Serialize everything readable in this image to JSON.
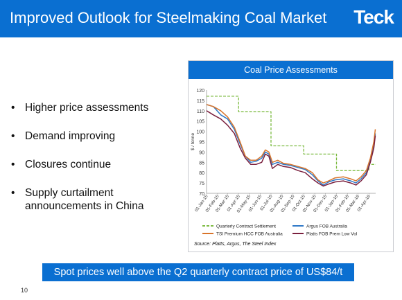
{
  "header": {
    "title": "Improved Outlook for Steelmaking Coal Market",
    "logo": "Teck"
  },
  "bullets": [
    "Higher price assessments",
    "Demand improving",
    "Closures continue",
    "Supply curtailment announcements in China"
  ],
  "banner": "Spot prices well above the Q2 quarterly contract price of US$84/t",
  "page_number": "10",
  "colors": {
    "brand_blue": "#0a6fd1"
  },
  "chart_data": {
    "type": "line",
    "title": "Coal Price Assessments",
    "ylabel": "$ / tonne",
    "xlabel": "",
    "ylim": [
      70,
      120
    ],
    "yticks": [
      70,
      75,
      80,
      85,
      90,
      95,
      100,
      105,
      110,
      115,
      120
    ],
    "xlim": [
      "2015-01-01",
      "2016-04-20"
    ],
    "xtick_labels": [
      "01-Jan-15",
      "01-Feb-15",
      "01-Mar-15",
      "01-Apr-15",
      "01-May-15",
      "01-Jun-15",
      "01-Jul-15",
      "01-Aug-15",
      "01-Sep-15",
      "01-Oct-15",
      "01-Nov-15",
      "01-Dec-15",
      "01-Jan-16",
      "01-Feb-16",
      "01-Mar-16",
      "01-Apr-16"
    ],
    "xtick_dates": [
      "2015-01-01",
      "2015-02-01",
      "2015-03-01",
      "2015-04-01",
      "2015-05-01",
      "2015-06-01",
      "2015-07-01",
      "2015-08-01",
      "2015-09-01",
      "2015-10-01",
      "2015-11-01",
      "2015-12-01",
      "2016-01-01",
      "2016-02-01",
      "2016-03-01",
      "2016-04-01"
    ],
    "source": "Source: Platts, Argus, The Steel Index",
    "legend_position": "bottom",
    "series": [
      {
        "name": "Quarterly Contract Settlement",
        "color": "#7dbb42",
        "dashed": true,
        "step": true,
        "points": [
          [
            "2015-01-01",
            117
          ],
          [
            "2015-04-01",
            117
          ],
          [
            "2015-04-01",
            109.5
          ],
          [
            "2015-07-01",
            109.5
          ],
          [
            "2015-07-01",
            93
          ],
          [
            "2015-10-01",
            93
          ],
          [
            "2015-10-01",
            89
          ],
          [
            "2016-01-01",
            89
          ],
          [
            "2016-01-01",
            81
          ],
          [
            "2016-04-01",
            81
          ],
          [
            "2016-04-01",
            84
          ],
          [
            "2016-04-20",
            84
          ]
        ]
      },
      {
        "name": "Argus FOB Australia",
        "color": "#2e78c7",
        "dashed": false,
        "step": false,
        "points": [
          [
            "2015-01-01",
            113
          ],
          [
            "2015-01-20",
            112
          ],
          [
            "2015-02-10",
            108
          ],
          [
            "2015-03-01",
            106
          ],
          [
            "2015-03-20",
            101
          ],
          [
            "2015-04-05",
            94
          ],
          [
            "2015-04-20",
            88
          ],
          [
            "2015-05-05",
            85
          ],
          [
            "2015-05-20",
            85.5
          ],
          [
            "2015-06-05",
            87
          ],
          [
            "2015-06-15",
            90
          ],
          [
            "2015-06-25",
            89
          ],
          [
            "2015-07-05",
            84
          ],
          [
            "2015-07-20",
            85
          ],
          [
            "2015-08-05",
            84
          ],
          [
            "2015-08-25",
            83.5
          ],
          [
            "2015-09-15",
            82.5
          ],
          [
            "2015-10-05",
            81.5
          ],
          [
            "2015-10-25",
            79
          ],
          [
            "2015-11-10",
            76
          ],
          [
            "2015-11-25",
            74
          ],
          [
            "2015-12-10",
            75.5
          ],
          [
            "2015-12-28",
            76.5
          ],
          [
            "2016-01-20",
            77
          ],
          [
            "2016-02-10",
            76
          ],
          [
            "2016-02-25",
            75
          ],
          [
            "2016-03-10",
            77
          ],
          [
            "2016-03-25",
            80
          ],
          [
            "2016-04-05",
            86
          ],
          [
            "2016-04-15",
            93
          ],
          [
            "2016-04-19",
            99
          ]
        ]
      },
      {
        "name": "TSI Premium HCC FOB Australia",
        "color": "#d9742a",
        "dashed": false,
        "step": false,
        "points": [
          [
            "2015-01-01",
            113
          ],
          [
            "2015-01-20",
            112
          ],
          [
            "2015-02-10",
            110
          ],
          [
            "2015-03-01",
            107
          ],
          [
            "2015-03-20",
            102
          ],
          [
            "2015-04-05",
            95
          ],
          [
            "2015-04-20",
            88
          ],
          [
            "2015-05-05",
            86
          ],
          [
            "2015-05-20",
            86
          ],
          [
            "2015-06-05",
            88
          ],
          [
            "2015-06-15",
            91
          ],
          [
            "2015-06-25",
            90
          ],
          [
            "2015-07-05",
            85
          ],
          [
            "2015-07-20",
            86
          ],
          [
            "2015-08-05",
            84.5
          ],
          [
            "2015-08-25",
            84
          ],
          [
            "2015-09-15",
            83
          ],
          [
            "2015-10-05",
            82
          ],
          [
            "2015-10-25",
            80
          ],
          [
            "2015-11-10",
            76.5
          ],
          [
            "2015-11-25",
            75
          ],
          [
            "2015-12-10",
            76
          ],
          [
            "2015-12-28",
            77.5
          ],
          [
            "2016-01-20",
            78
          ],
          [
            "2016-02-10",
            77
          ],
          [
            "2016-02-25",
            76
          ],
          [
            "2016-03-10",
            78
          ],
          [
            "2016-03-25",
            81
          ],
          [
            "2016-04-05",
            87
          ],
          [
            "2016-04-15",
            95
          ],
          [
            "2016-04-19",
            101
          ]
        ]
      },
      {
        "name": "Platts FOB Prem Low Vol",
        "color": "#7a1f3d",
        "dashed": false,
        "step": false,
        "points": [
          [
            "2015-01-01",
            110
          ],
          [
            "2015-01-20",
            108
          ],
          [
            "2015-02-10",
            106
          ],
          [
            "2015-03-01",
            103
          ],
          [
            "2015-03-20",
            99
          ],
          [
            "2015-04-05",
            92
          ],
          [
            "2015-04-20",
            87
          ],
          [
            "2015-05-05",
            84
          ],
          [
            "2015-05-20",
            84
          ],
          [
            "2015-06-05",
            85
          ],
          [
            "2015-06-15",
            89
          ],
          [
            "2015-06-25",
            88
          ],
          [
            "2015-07-05",
            82
          ],
          [
            "2015-07-20",
            84
          ],
          [
            "2015-08-05",
            83
          ],
          [
            "2015-08-25",
            82.5
          ],
          [
            "2015-09-15",
            81
          ],
          [
            "2015-10-05",
            80
          ],
          [
            "2015-10-25",
            77
          ],
          [
            "2015-11-10",
            75
          ],
          [
            "2015-11-25",
            73.5
          ],
          [
            "2015-12-10",
            74.5
          ],
          [
            "2015-12-28",
            75.5
          ],
          [
            "2016-01-20",
            76
          ],
          [
            "2016-02-10",
            75
          ],
          [
            "2016-02-25",
            74
          ],
          [
            "2016-03-10",
            76
          ],
          [
            "2016-03-25",
            79
          ],
          [
            "2016-04-05",
            85
          ],
          [
            "2016-04-15",
            92
          ],
          [
            "2016-04-19",
            98
          ]
        ]
      }
    ]
  }
}
